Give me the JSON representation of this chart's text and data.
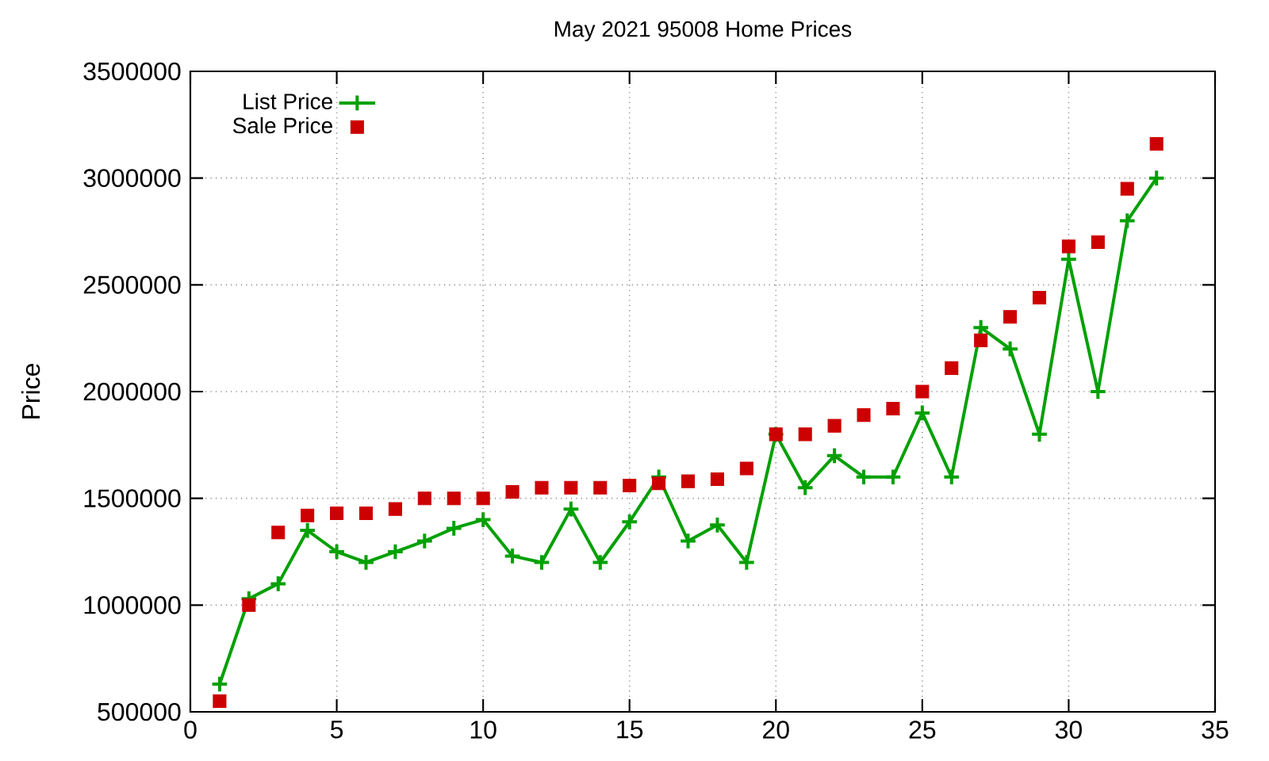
{
  "chart_data": {
    "type": "line",
    "title": "May 2021 95008 Home Prices",
    "ylabel": "Price",
    "x": [
      1,
      2,
      3,
      4,
      5,
      6,
      7,
      8,
      9,
      10,
      11,
      12,
      13,
      14,
      15,
      16,
      17,
      18,
      19,
      20,
      21,
      22,
      23,
      24,
      25,
      26,
      27,
      28,
      29,
      30,
      31,
      32,
      33
    ],
    "series": [
      {
        "name": "List Price",
        "color": "#00a000",
        "marker": "cross",
        "values": [
          630000,
          1030000,
          1100000,
          1350000,
          1250000,
          1200000,
          1250000,
          1300000,
          1360000,
          1400000,
          1230000,
          1200000,
          1450000,
          1200000,
          1390000,
          1600000,
          1300000,
          1375000,
          1200000,
          1800000,
          1550000,
          1700000,
          1600000,
          1600000,
          1900000,
          1600000,
          2300000,
          2200000,
          1800000,
          2620000,
          2000000,
          2800000,
          3000000
        ]
      },
      {
        "name": "Sale Price",
        "type": "scatter",
        "color": "#cc0000",
        "marker": "square",
        "values": [
          550000,
          1000000,
          1340000,
          1420000,
          1430000,
          1430000,
          1450000,
          1500000,
          1500000,
          1500000,
          1530000,
          1550000,
          1550000,
          1550000,
          1560000,
          1570000,
          1580000,
          1590000,
          1640000,
          1800000,
          1800000,
          1840000,
          1890000,
          1920000,
          2000000,
          2110000,
          2240000,
          2350000,
          2440000,
          2680000,
          2700000,
          2950000,
          3160000
        ]
      }
    ],
    "xlim": [
      0,
      35
    ],
    "xticks": [
      0,
      5,
      10,
      15,
      20,
      25,
      30,
      35
    ],
    "ylim": [
      500000,
      3500000
    ],
    "yticks": [
      500000,
      1000000,
      1500000,
      2000000,
      2500000,
      3000000,
      3500000
    ],
    "grid": true,
    "legend": "top left"
  }
}
